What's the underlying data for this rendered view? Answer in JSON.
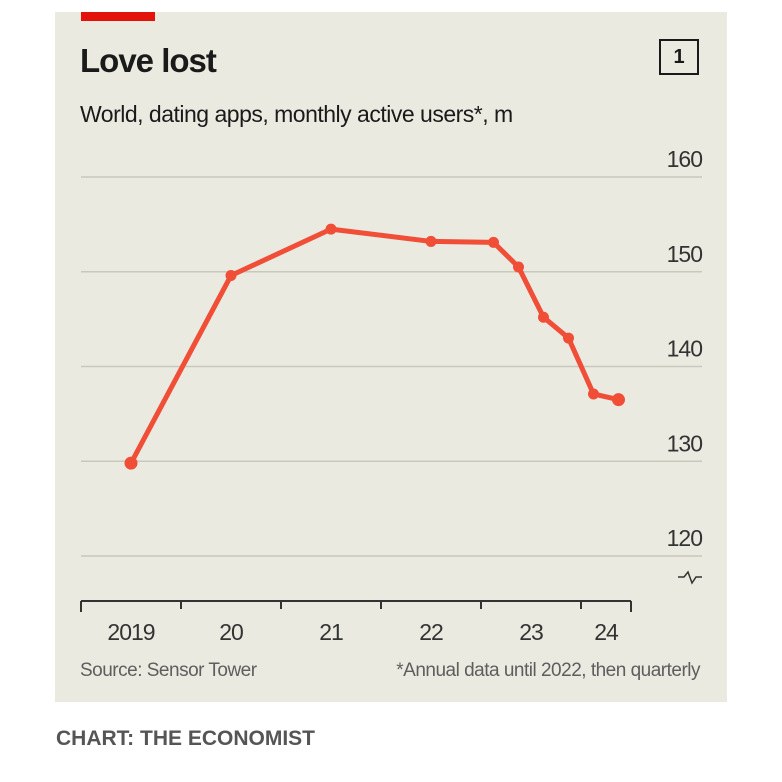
{
  "header": {
    "title": "Love lost",
    "chart_number": "1",
    "subtitle": "World, dating apps, monthly active users*, m"
  },
  "footer": {
    "source": "Source: Sensor Tower",
    "footnote": "*Annual data until 2022, then quarterly",
    "credit": "CHART: THE ECONOMIST"
  },
  "colors": {
    "line": "#f04e37",
    "accent": "#e3120b",
    "background": "#ebeae0",
    "grid": "#c9c8bd"
  },
  "chart_data": {
    "type": "line",
    "title": "Love lost",
    "subtitle": "World, dating apps, monthly active users*, m",
    "xlabel": "",
    "ylabel": "monthly active users, m",
    "x_tick_labels": [
      "2019",
      "20",
      "21",
      "22",
      "23",
      "24"
    ],
    "y_ticks": [
      120,
      130,
      140,
      150,
      160
    ],
    "ylim": [
      120,
      160
    ],
    "y_axis_broken": true,
    "grid": true,
    "y_axis_side": "right",
    "series": [
      {
        "name": "Monthly active users",
        "x": [
          "2019",
          "2020",
          "2021",
          "2022",
          "2023 Q1",
          "2023 Q2",
          "2023 Q3",
          "2023 Q4",
          "2024 Q1",
          "2024 Q2"
        ],
        "x_numeric": [
          2019.5,
          2020.5,
          2021.5,
          2022.5,
          2023.125,
          2023.375,
          2023.625,
          2023.875,
          2024.125,
          2024.375
        ],
        "values": [
          129.8,
          149.6,
          154.5,
          153.2,
          153.1,
          150.5,
          145.2,
          143.0,
          137.1,
          136.5
        ]
      }
    ],
    "source": "Source: Sensor Tower",
    "annotation": "*Annual data until 2022, then quarterly"
  }
}
